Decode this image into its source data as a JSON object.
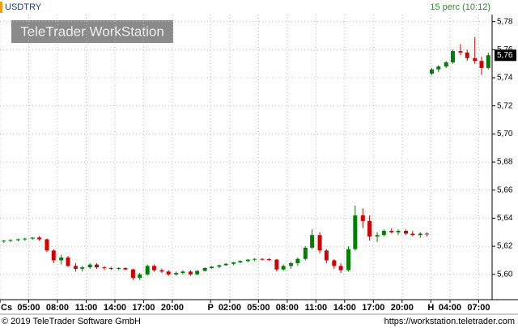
{
  "chart_data": {
    "type": "candlestick",
    "title": "USDTRY",
    "subtitle": "15 perc (10:12)",
    "watermark": "TeleTrader WorkStation",
    "footer_left": "© 2019 TeleTrader Software GmbH",
    "footer_right": "https://workstation.teletrader.com",
    "up_color": "#008000",
    "down_color": "#d40000",
    "grid": true,
    "ylim": [
      5.582,
      5.785
    ],
    "yticks": [
      {
        "value": 5.6,
        "label": "5,60"
      },
      {
        "value": 5.62,
        "label": "5,62"
      },
      {
        "value": 5.64,
        "label": "5,64"
      },
      {
        "value": 5.66,
        "label": "5,66"
      },
      {
        "value": 5.68,
        "label": "5,68"
      },
      {
        "value": 5.7,
        "label": "5,70"
      },
      {
        "value": 5.72,
        "label": "5,72"
      },
      {
        "value": 5.74,
        "label": "5,74"
      },
      {
        "value": 5.76,
        "label": "5,76"
      },
      {
        "value": 5.78,
        "label": "5,78"
      }
    ],
    "last_price": {
      "value": 5.756,
      "label": "5,76"
    },
    "xlim": [
      0,
      51.4
    ],
    "xticks": [
      {
        "value": 0,
        "label": "Cs"
      },
      {
        "value": 3,
        "label": "05:00"
      },
      {
        "value": 6,
        "label": "08:00"
      },
      {
        "value": 9,
        "label": "11:00"
      },
      {
        "value": 12,
        "label": "14:00"
      },
      {
        "value": 15,
        "label": "17:00"
      },
      {
        "value": 18,
        "label": "20:00"
      },
      {
        "value": 22,
        "label": "P"
      },
      {
        "value": 24,
        "label": "02:00"
      },
      {
        "value": 27,
        "label": "05:00"
      },
      {
        "value": 30,
        "label": "08:00"
      },
      {
        "value": 33,
        "label": "11:00"
      },
      {
        "value": 36,
        "label": "14:00"
      },
      {
        "value": 39,
        "label": "17:00"
      },
      {
        "value": 42,
        "label": "20:00"
      },
      {
        "value": 45,
        "label": "H"
      },
      {
        "value": 47,
        "label": "04:00"
      },
      {
        "value": 50,
        "label": "07:00"
      }
    ],
    "x": [
      0.4,
      1.1,
      1.9,
      2.6,
      3.4,
      4.1,
      4.9,
      5.6,
      6.4,
      7.1,
      7.9,
      8.6,
      9.4,
      10.1,
      10.9,
      11.6,
      12.4,
      13.1,
      13.9,
      14.6,
      15.4,
      16.1,
      16.9,
      17.6,
      18.4,
      19.1,
      19.9,
      20.6,
      21.4,
      22.1,
      22.9,
      23.6,
      24.4,
      25.1,
      25.9,
      26.6,
      27.4,
      28.1,
      28.9,
      29.6,
      30.4,
      31.1,
      31.9,
      32.6,
      33.4,
      34.1,
      34.9,
      35.6,
      36.4,
      37.1,
      37.9,
      38.6,
      39.4,
      40.1,
      40.9,
      41.6,
      42.4,
      43.1,
      43.9,
      44.6,
      45.1,
      45.8,
      46.6,
      47.3,
      48.1,
      48.8,
      49.6,
      50.3,
      51.0
    ],
    "open": [
      5.6235,
      5.624,
      5.6245,
      5.625,
      5.6255,
      5.6262,
      5.625,
      5.617,
      5.61,
      5.612,
      5.606,
      5.604,
      5.605,
      5.607,
      5.605,
      5.6045,
      5.604,
      5.6045,
      5.6035,
      5.5975,
      5.6,
      5.606,
      5.603,
      5.602,
      5.6,
      5.601,
      5.602,
      5.6,
      5.6025,
      5.6045,
      5.6055,
      5.6065,
      5.6075,
      5.6085,
      5.6095,
      5.6105,
      5.611,
      5.6108,
      5.6105,
      5.6035,
      5.606,
      5.608,
      5.611,
      5.619,
      5.628,
      5.617,
      5.61,
      5.606,
      5.603,
      5.618,
      5.642,
      5.638,
      5.627,
      5.628,
      5.631,
      5.63,
      5.631,
      5.629,
      5.628,
      5.629,
      5.743,
      5.746,
      5.748,
      5.751,
      5.759,
      5.758,
      5.754,
      5.752,
      5.747
    ],
    "high": [
      5.6245,
      5.625,
      5.6255,
      5.626,
      5.6265,
      5.6272,
      5.6255,
      5.618,
      5.614,
      5.613,
      5.608,
      5.606,
      5.608,
      5.608,
      5.606,
      5.6055,
      5.605,
      5.605,
      5.604,
      5.601,
      5.607,
      5.607,
      5.604,
      5.603,
      5.602,
      5.603,
      5.603,
      5.603,
      5.605,
      5.606,
      5.607,
      5.608,
      5.609,
      5.61,
      5.611,
      5.6115,
      5.6115,
      5.6115,
      5.611,
      5.607,
      5.609,
      5.612,
      5.62,
      5.632,
      5.63,
      5.618,
      5.611,
      5.608,
      5.62,
      5.649,
      5.647,
      5.642,
      5.63,
      5.632,
      5.633,
      5.632,
      5.632,
      5.631,
      5.63,
      5.63,
      5.747,
      5.749,
      5.752,
      5.76,
      5.764,
      5.76,
      5.769,
      5.755,
      5.758
    ],
    "low": [
      5.6225,
      5.623,
      5.6235,
      5.624,
      5.6245,
      5.624,
      5.616,
      5.608,
      5.607,
      5.605,
      5.602,
      5.602,
      5.604,
      5.604,
      5.603,
      5.603,
      5.603,
      5.603,
      5.596,
      5.596,
      5.599,
      5.602,
      5.601,
      5.599,
      5.599,
      5.6,
      5.599,
      5.5995,
      5.602,
      5.604,
      5.6045,
      5.606,
      5.6065,
      5.608,
      5.6085,
      5.6095,
      5.61,
      5.6095,
      5.602,
      5.6025,
      5.604,
      5.606,
      5.61,
      5.618,
      5.615,
      5.608,
      5.604,
      5.601,
      5.602,
      5.617,
      5.633,
      5.624,
      5.623,
      5.627,
      5.629,
      5.628,
      5.628,
      5.627,
      5.626,
      5.627,
      5.742,
      5.744,
      5.747,
      5.75,
      5.756,
      5.752,
      5.75,
      5.742,
      5.746
    ],
    "close": [
      5.624,
      5.6245,
      5.625,
      5.6255,
      5.6262,
      5.625,
      5.617,
      5.61,
      5.612,
      5.606,
      5.604,
      5.605,
      5.607,
      5.605,
      5.6045,
      5.604,
      5.6045,
      5.6035,
      5.5975,
      5.6,
      5.606,
      5.603,
      5.602,
      5.6,
      5.601,
      5.602,
      5.6,
      5.6025,
      5.6045,
      5.6055,
      5.6065,
      5.6075,
      5.6085,
      5.6095,
      5.6105,
      5.611,
      5.6108,
      5.6105,
      5.6035,
      5.606,
      5.608,
      5.611,
      5.619,
      5.628,
      5.617,
      5.61,
      5.606,
      5.603,
      5.618,
      5.642,
      5.638,
      5.627,
      5.628,
      5.631,
      5.63,
      5.631,
      5.629,
      5.628,
      5.629,
      5.6285,
      5.746,
      5.748,
      5.751,
      5.759,
      5.758,
      5.754,
      5.752,
      5.747,
      5.756
    ]
  }
}
